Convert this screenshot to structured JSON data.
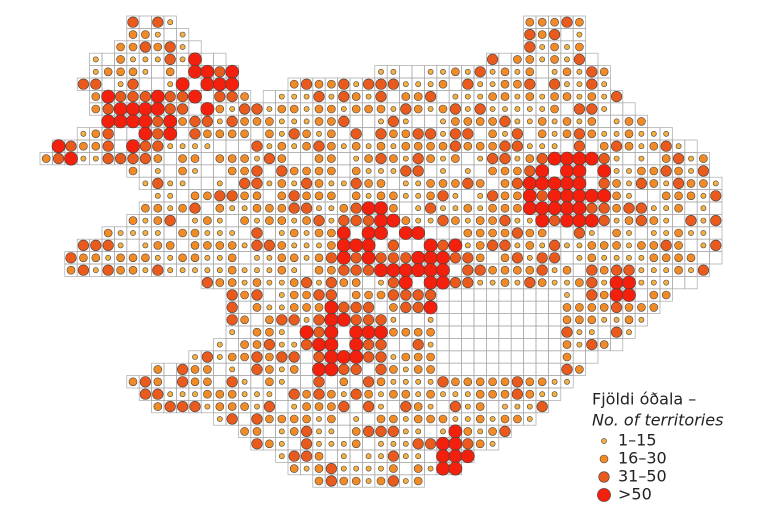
{
  "legend": {
    "title": "Fjöldi óðala –",
    "subtitle": "No. of territories",
    "classes": [
      "1–15",
      "16–30",
      "31–50",
      ">50"
    ]
  }
}
